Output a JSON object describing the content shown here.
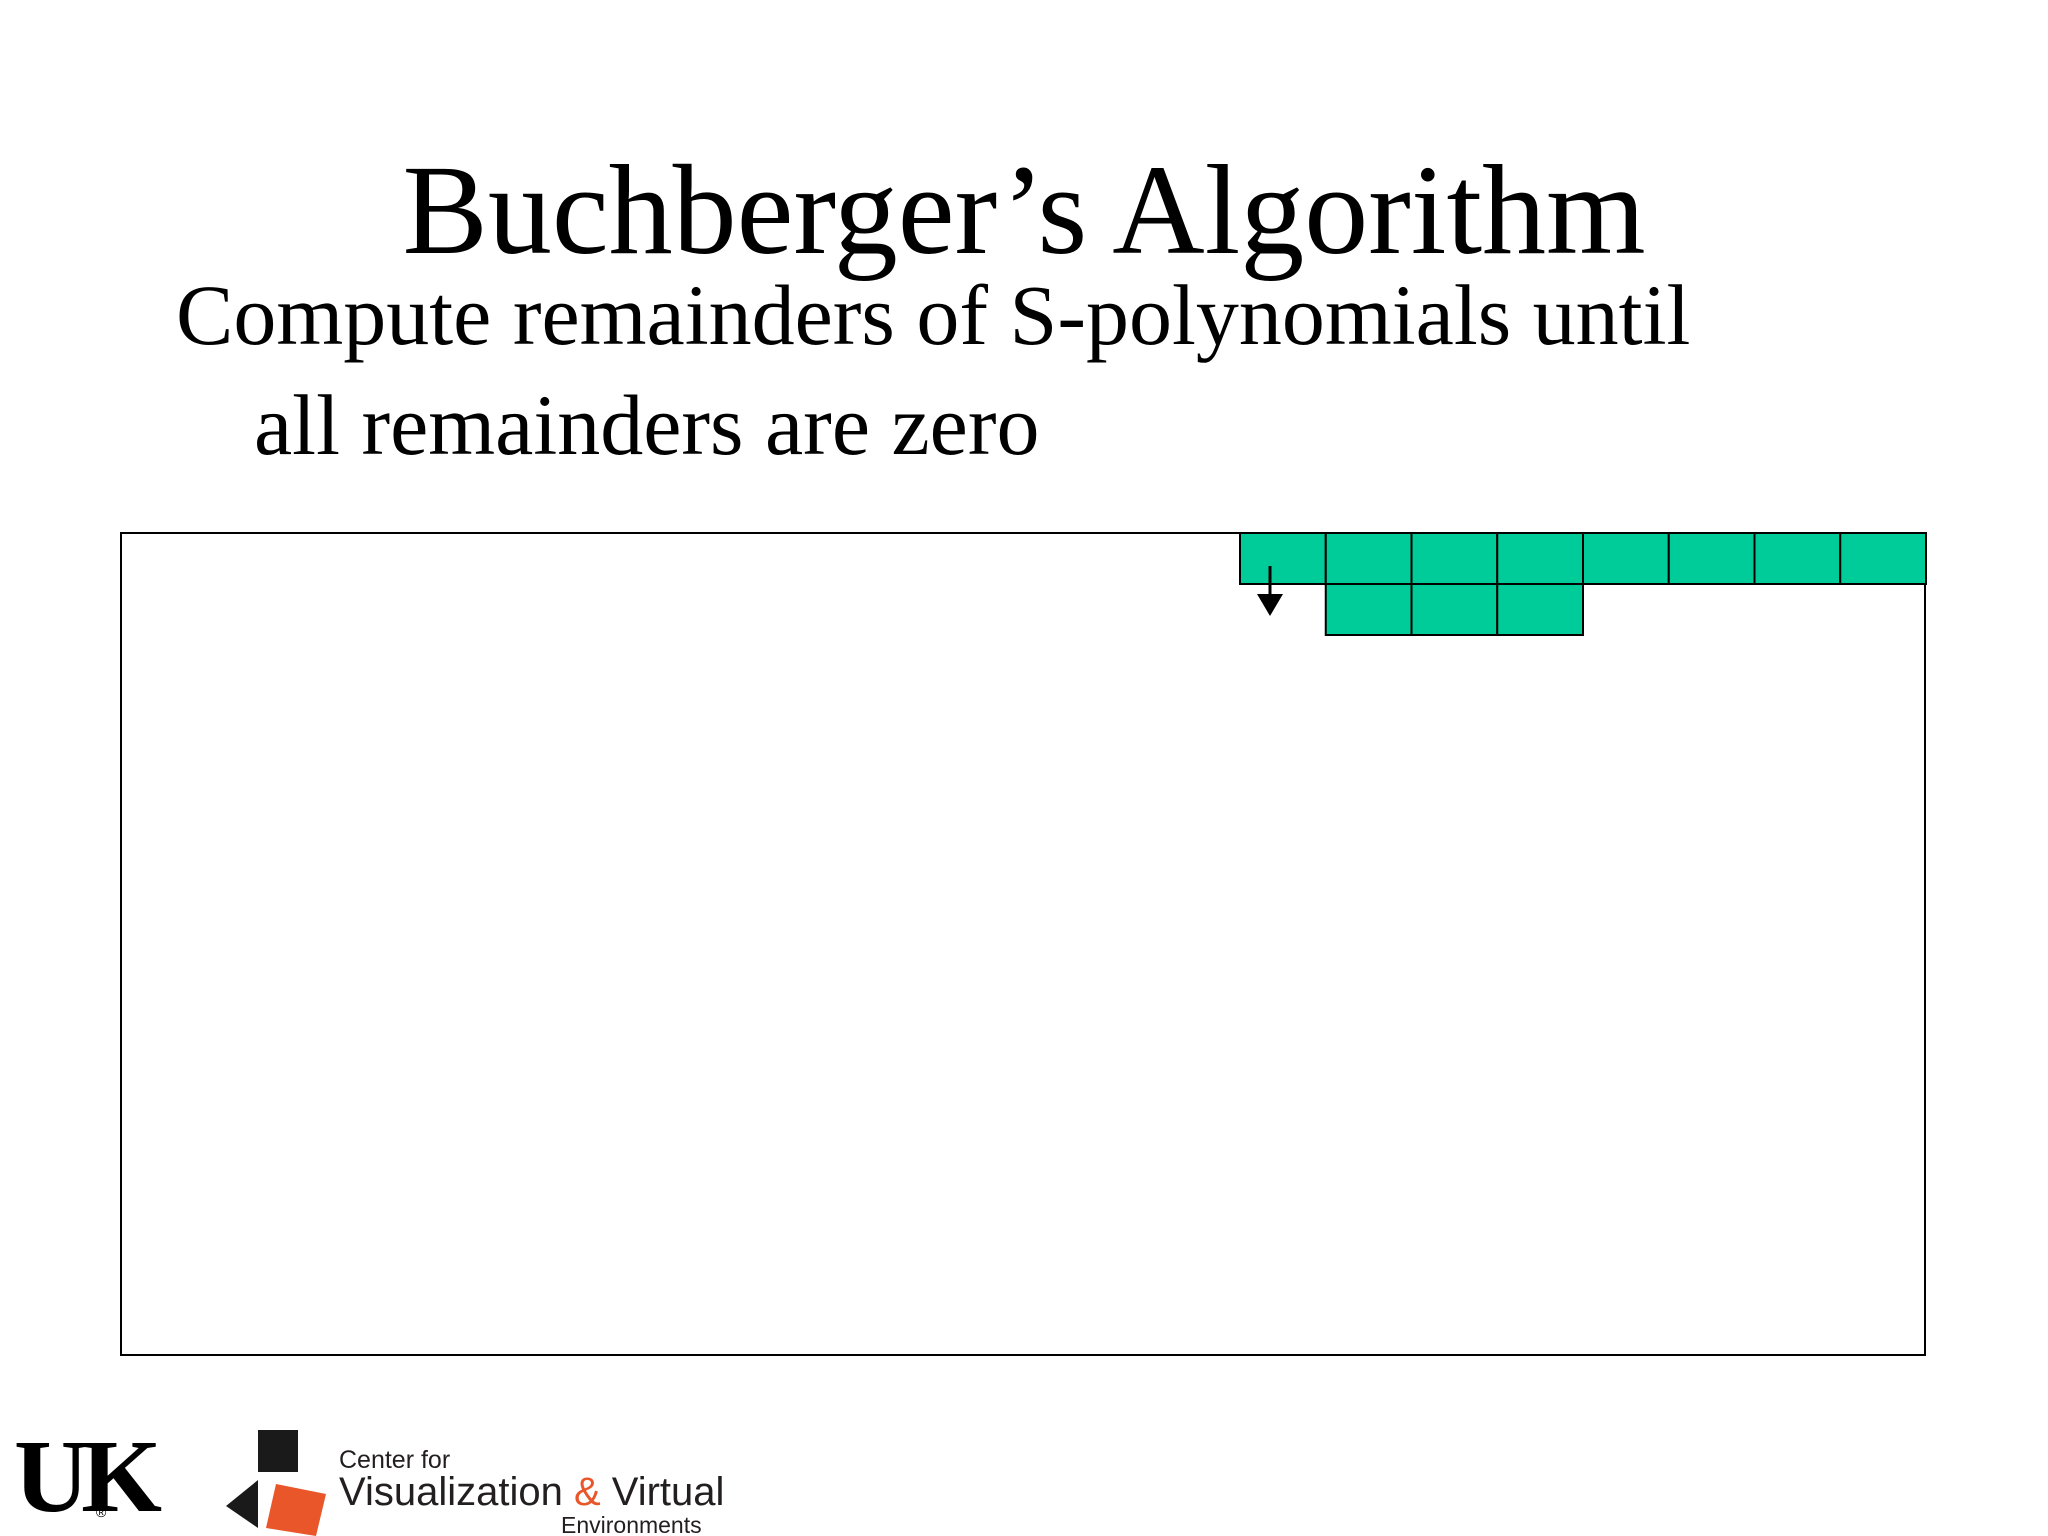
{
  "slide": {
    "title": "Buchberger’s Algorithm",
    "bullet": {
      "line1": "Compute remainders of S-polynomials until",
      "line2": "all remainders are zero"
    }
  },
  "diagram": {
    "cell_color": "#00cc99",
    "border_color": "#000000",
    "top_row_cell_count": 8,
    "second_row_cell_count": 3,
    "arrow_direction": "down"
  },
  "footer": {
    "uk_logo_text": "UK",
    "cvve": {
      "line1": "Center for",
      "line2_a": "Visualization ",
      "line2_amp": "&",
      "line2_b": " Virtual",
      "line3": "Environments",
      "accent_color": "#e8562a",
      "dark_color": "#1a1a1a"
    }
  }
}
